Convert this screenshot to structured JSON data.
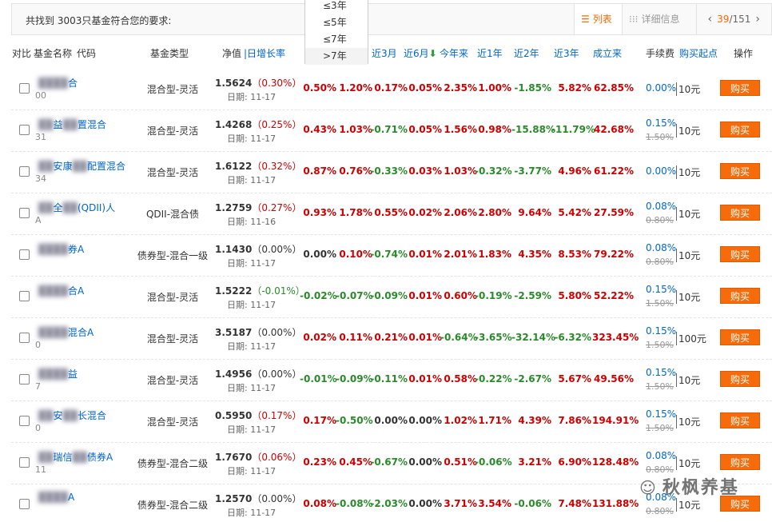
{
  "toolbar": {
    "found_text": "共找到 3003只基金符合您的要求:",
    "view_list_label": "列表",
    "view_detail_label": "详细信息",
    "page_current": "39",
    "page_total": "/151",
    "list_icon": "list-icon",
    "grid_icon": "grid-icon"
  },
  "dropdown": {
    "options": [
      "≤3年",
      "≤5年",
      "≤7年",
      ">7年"
    ],
    "selected": ">7年"
  },
  "headers": {
    "compare": "对比",
    "name": "基金名称",
    "code": "代码",
    "type": "基金类型",
    "nav": "净值",
    "daily": "日增长率",
    "m3": "近3月",
    "m6": "近6月",
    "ytd": "今年来",
    "y1": "近1年",
    "y2": "近2年",
    "y3": "近3年",
    "since": "成立来",
    "fee": "手续费",
    "minbuy": "购买起点",
    "action": "操作"
  },
  "funds": [
    {
      "name_a": "",
      "name_b": "合",
      "code": "00",
      "type": "混合型-灵活",
      "nav": "1.5624",
      "chg": "0.30%",
      "date": "日期: 11-17",
      "c1": "0.50%",
      "c2": "1.20%",
      "m3": "0.17%",
      "m6": "0.05%",
      "ytd": "2.35%",
      "y1": "1.00%",
      "y2": "-1.85%",
      "y3": "5.82%",
      "since": "62.85%",
      "fee": "0.00%",
      "fee_old": "",
      "min": "10元",
      "buy": "购买"
    },
    {
      "name_a": "益",
      "name_b": "置混合",
      "code": "31",
      "type": "混合型-灵活",
      "nav": "1.4268",
      "chg": "0.25%",
      "date": "日期: 11-17",
      "c1": "0.43%",
      "c2": "1.03%",
      "m3": "-0.71%",
      "m6": "0.05%",
      "ytd": "1.56%",
      "y1": "0.98%",
      "y2": "-15.88%",
      "y3": "-11.79%",
      "since": "42.68%",
      "fee": "0.15%",
      "fee_old": "1.50%",
      "min": "10元",
      "buy": "购买"
    },
    {
      "name_a": "安康",
      "name_b": "配置混合",
      "code": "34",
      "type": "混合型-灵活",
      "nav": "1.6122",
      "chg": "0.32%",
      "date": "日期: 11-17",
      "c1": "0.87%",
      "c2": "0.76%",
      "m3": "-0.33%",
      "m6": "0.03%",
      "ytd": "1.03%",
      "y1": "-0.32%",
      "y2": "-3.77%",
      "y3": "4.96%",
      "since": "61.22%",
      "fee": "0.00%",
      "fee_old": "",
      "min": "10元",
      "buy": "购买"
    },
    {
      "name_a": "全",
      "name_b": "(QDII)人",
      "code": "A",
      "type": "QDII-混合债",
      "nav": "1.2759",
      "chg": "0.27%",
      "date": "日期: 11-16",
      "c1": "0.93%",
      "c2": "1.78%",
      "m3": "0.55%",
      "m6": "0.02%",
      "ytd": "2.06%",
      "y1": "2.80%",
      "y2": "9.64%",
      "y3": "5.42%",
      "since": "27.59%",
      "fee": "0.08%",
      "fee_old": "0.80%",
      "min": "10元",
      "buy": "购买"
    },
    {
      "name_a": "",
      "name_b": "券A",
      "code": "",
      "type": "债券型-混合一级",
      "nav": "1.1430",
      "chg": "0.00%",
      "date": "日期: 11-17",
      "c1": "0.00%",
      "c2": "0.10%",
      "m3": "-0.74%",
      "m6": "0.01%",
      "ytd": "2.01%",
      "y1": "1.83%",
      "y2": "4.35%",
      "y3": "8.53%",
      "since": "79.22%",
      "fee": "0.08%",
      "fee_old": "0.80%",
      "min": "10元",
      "buy": "购买"
    },
    {
      "name_a": "",
      "name_b": "合A",
      "code": "",
      "type": "混合型-灵活",
      "nav": "1.5222",
      "chg": "-0.01%",
      "date": "日期: 11-17",
      "c1": "-0.02%",
      "c2": "-0.07%",
      "m3": "-0.09%",
      "m6": "0.01%",
      "ytd": "0.60%",
      "y1": "-0.19%",
      "y2": "-2.59%",
      "y3": "5.80%",
      "since": "52.22%",
      "fee": "0.15%",
      "fee_old": "1.50%",
      "min": "10元",
      "buy": "购买"
    },
    {
      "name_a": "",
      "name_b": "混合A",
      "code": "0",
      "type": "混合型-灵活",
      "nav": "3.5187",
      "chg": "0.00%",
      "date": "日期: 11-17",
      "c1": "0.02%",
      "c2": "0.11%",
      "m3": "0.21%",
      "m6": "0.01%",
      "ytd": "-0.64%",
      "y1": "-3.65%",
      "y2": "-32.14%",
      "y3": "-6.32%",
      "since": "323.45%",
      "fee": "0.15%",
      "fee_old": "1.50%",
      "min": "100元",
      "buy": "购买"
    },
    {
      "name_a": "",
      "name_b": "益",
      "code": "7",
      "type": "混合型-灵活",
      "nav": "1.4956",
      "chg": "0.00%",
      "date": "日期: 11-17",
      "c1": "-0.01%",
      "c2": "-0.09%",
      "m3": "-0.11%",
      "m6": "0.01%",
      "ytd": "0.58%",
      "y1": "-0.22%",
      "y2": "-2.67%",
      "y3": "5.67%",
      "since": "49.56%",
      "fee": "0.15%",
      "fee_old": "1.50%",
      "min": "10元",
      "buy": "购买"
    },
    {
      "name_a": "安",
      "name_b": "长混合",
      "code": "0",
      "type": "混合型-灵活",
      "nav": "0.5950",
      "chg": "0.17%",
      "date": "日期: 11-17",
      "c1": "0.17%",
      "c2": "-0.50%",
      "m3": "0.00%",
      "m6": "0.00%",
      "ytd": "1.02%",
      "y1": "1.71%",
      "y2": "4.39%",
      "y3": "7.86%",
      "since": "194.91%",
      "fee": "0.15%",
      "fee_old": "1.50%",
      "min": "10元",
      "buy": "购买"
    },
    {
      "name_a": "瑞信",
      "name_b": "债券A",
      "code": "11",
      "type": "债券型-混合二级",
      "nav": "1.7670",
      "chg": "0.06%",
      "date": "日期: 11-17",
      "c1": "0.23%",
      "c2": "0.45%",
      "m3": "-0.67%",
      "m6": "0.00%",
      "ytd": "0.51%",
      "y1": "-0.06%",
      "y2": "3.21%",
      "y3": "6.90%",
      "since": "128.48%",
      "fee": "0.08%",
      "fee_old": "0.80%",
      "min": "10元",
      "buy": "购买"
    },
    {
      "name_a": "",
      "name_b": "A",
      "code": "",
      "type": "债券型-混合二级",
      "nav": "1.2570",
      "chg": "0.00%",
      "date": "日期: 11-17",
      "c1": "0.08%",
      "c2": "-0.08%",
      "m3": "-2.03%",
      "m6": "0.00%",
      "ytd": "3.71%",
      "y1": "3.54%",
      "y2": "-0.06%",
      "y3": "7.48%",
      "since": "131.88%",
      "fee": "0.08%",
      "fee_old": "0.80%",
      "min": "10元",
      "buy": "购买"
    }
  ],
  "watermark": {
    "text": "秋枫养基"
  },
  "colors": {
    "positive": "#c00",
    "negative": "#2a8a2a",
    "neutral": "#333",
    "buy_button": "#f76c0a",
    "link": "#0066cc"
  }
}
